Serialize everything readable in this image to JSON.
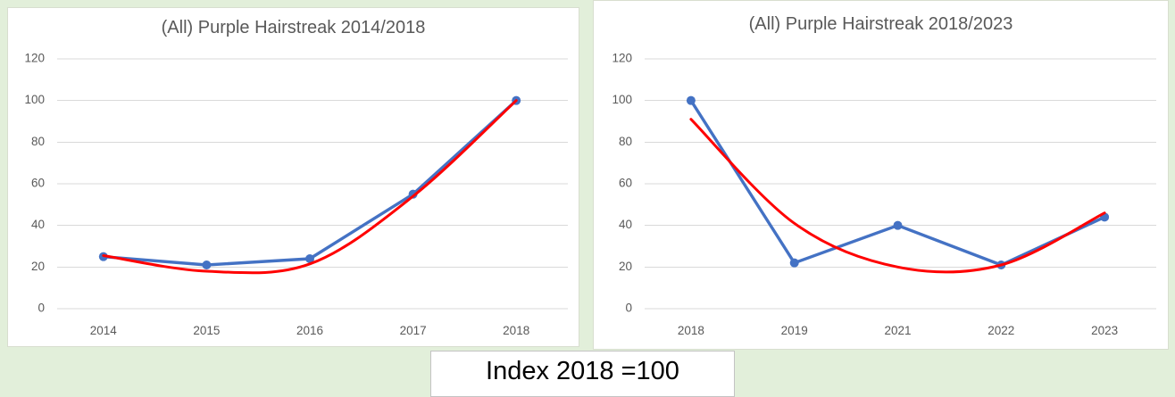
{
  "footer": {
    "label": "Index 2018 =100"
  },
  "colors": {
    "background": "#e2efda",
    "panel_background": "#ffffff",
    "panel_border": "#d8decf",
    "gridline": "#d9d9d9",
    "text": "#595959",
    "series_blue": "#4472c4",
    "trend_red": "#ff0000",
    "footer_text": "#000000"
  },
  "chart_data": [
    {
      "type": "line",
      "title": "(All) Purple Hairstreak 2014/2018",
      "categories": [
        "2014",
        "2015",
        "2016",
        "2017",
        "2018"
      ],
      "series": [
        {
          "name": "Index (blue line with markers)",
          "color": "#4472c4",
          "marker": "circle",
          "smooth": false,
          "values": [
            25,
            21,
            24,
            55,
            100
          ]
        },
        {
          "name": "Polynomial trendline (red)",
          "color": "#ff0000",
          "marker": "none",
          "smooth": true,
          "values": [
            25.5,
            18,
            21.5,
            54,
            100
          ]
        }
      ],
      "xlabel": "",
      "ylabel": "",
      "ylim": [
        0,
        130
      ],
      "y_ticks": [
        0,
        20,
        40,
        60,
        80,
        100,
        120
      ],
      "grid": "horizontal",
      "legend": "none"
    },
    {
      "type": "line",
      "title": "(All) Purple Hairstreak 2018/2023",
      "categories": [
        "2018",
        "2019",
        "2021",
        "2022",
        "2023"
      ],
      "series": [
        {
          "name": "Index (blue line with markers)",
          "color": "#4472c4",
          "marker": "circle",
          "smooth": false,
          "values": [
            100,
            22,
            40,
            21,
            44
          ]
        },
        {
          "name": "Polynomial trendline (red)",
          "color": "#ff0000",
          "marker": "none",
          "smooth": true,
          "values": [
            91,
            41,
            20,
            21,
            46
          ]
        }
      ],
      "xlabel": "",
      "ylabel": "",
      "ylim": [
        0,
        130
      ],
      "y_ticks": [
        0,
        20,
        40,
        60,
        80,
        100,
        120
      ],
      "grid": "horizontal",
      "legend": "none"
    }
  ]
}
